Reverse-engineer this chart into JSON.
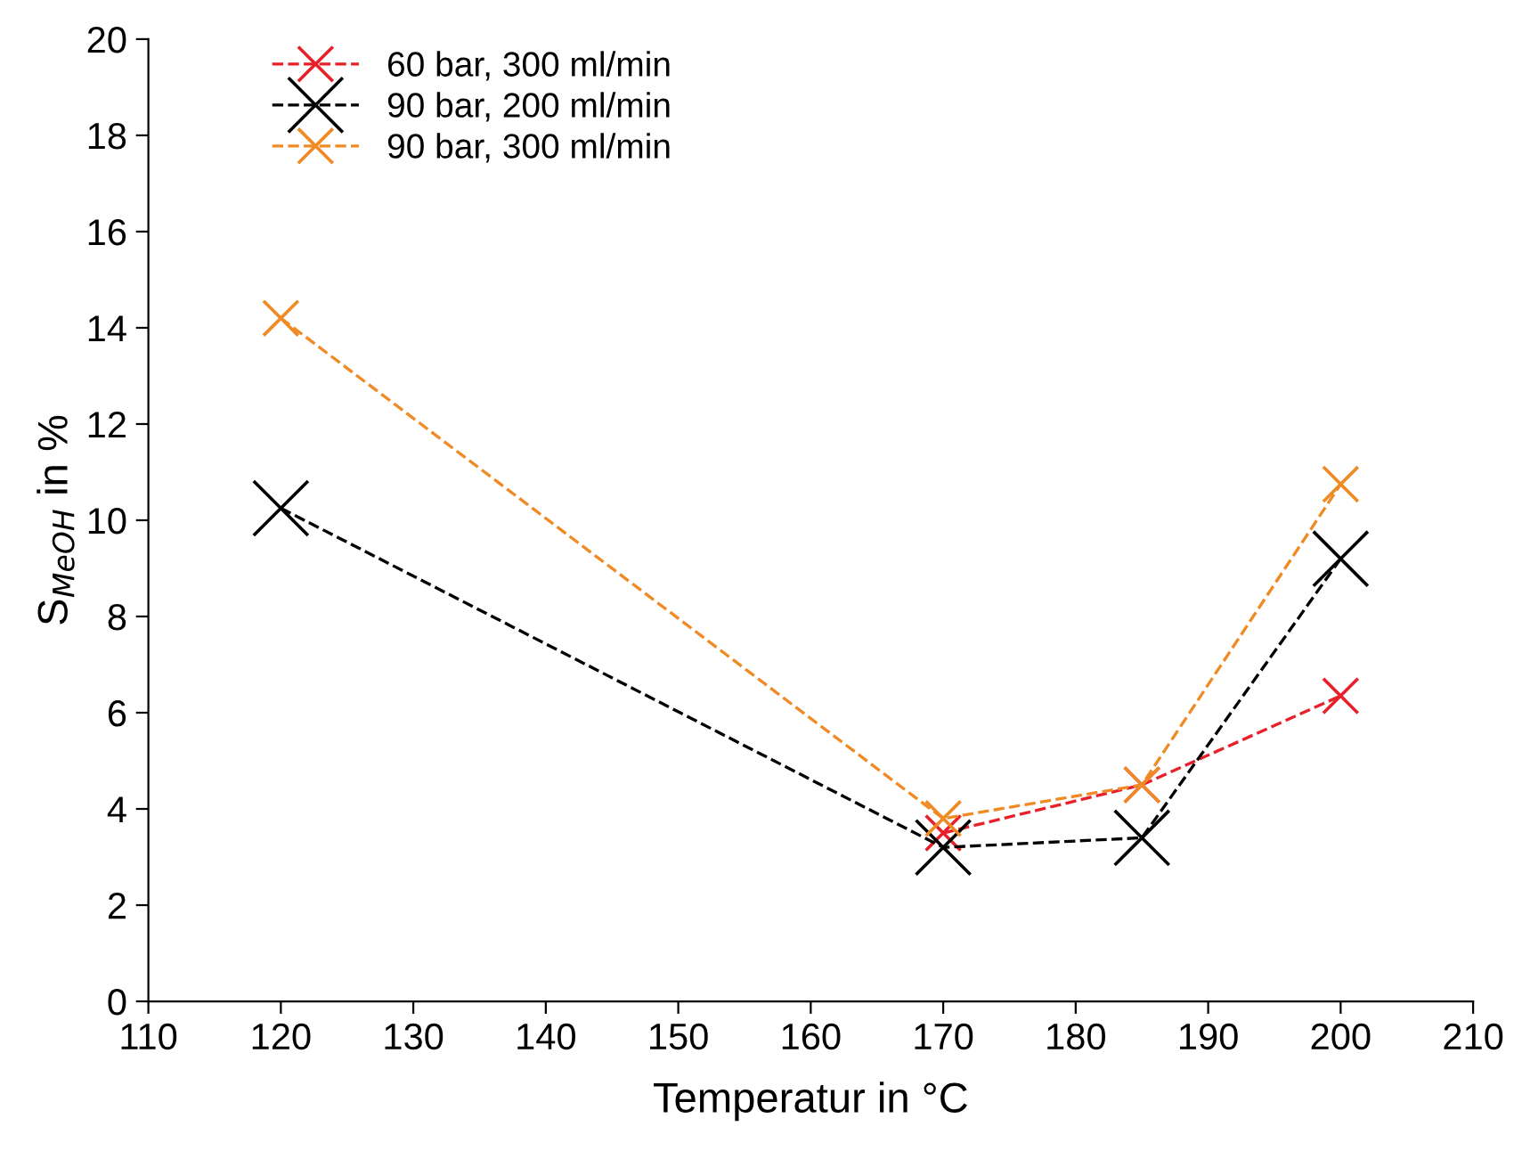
{
  "chart_data": {
    "type": "line",
    "xlabel": "Temperatur in °C",
    "ylabel": "S$_{MeOH}$ in %",
    "xlim": [
      110,
      210
    ],
    "xticks": [
      110,
      120,
      130,
      140,
      150,
      160,
      170,
      180,
      190,
      200,
      210
    ],
    "ylim": [
      0,
      20
    ],
    "yticks": [
      0,
      2,
      4,
      6,
      8,
      10,
      12,
      14,
      16,
      18,
      20
    ],
    "line_style": "dashed",
    "legend": "top left",
    "grid": false,
    "series": [
      {
        "name": "60 bar, 300 ml/min",
        "color": "#e8202a",
        "marker": "cross",
        "x": [
          170,
          185,
          200
        ],
        "values": [
          3.5,
          4.5,
          6.35
        ]
      },
      {
        "name": "90 bar, 200 ml/min",
        "color": "#000000",
        "marker": "cross",
        "x": [
          120,
          170,
          185,
          200
        ],
        "values": [
          10.25,
          3.2,
          3.4,
          9.2
        ]
      },
      {
        "name": "90 bar, 300 ml/min",
        "color": "#f08a24",
        "marker": "cross",
        "x": [
          120,
          170,
          185,
          200
        ],
        "values": [
          14.2,
          3.8,
          4.5,
          10.75
        ]
      }
    ]
  }
}
